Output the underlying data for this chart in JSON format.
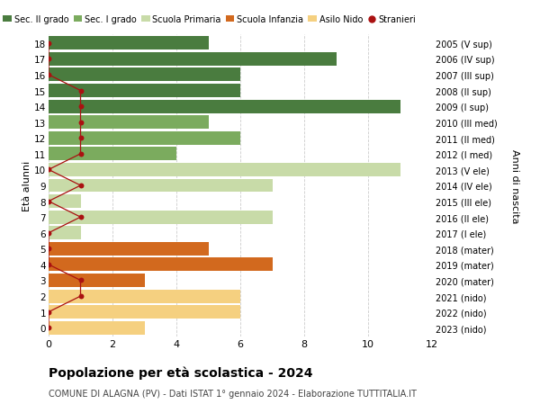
{
  "ages": [
    18,
    17,
    16,
    15,
    14,
    13,
    12,
    11,
    10,
    9,
    8,
    7,
    6,
    5,
    4,
    3,
    2,
    1,
    0
  ],
  "right_labels": [
    "2005 (V sup)",
    "2006 (IV sup)",
    "2007 (III sup)",
    "2008 (II sup)",
    "2009 (I sup)",
    "2010 (III med)",
    "2011 (II med)",
    "2012 (I med)",
    "2013 (V ele)",
    "2014 (IV ele)",
    "2015 (III ele)",
    "2016 (II ele)",
    "2017 (I ele)",
    "2018 (mater)",
    "2019 (mater)",
    "2020 (mater)",
    "2021 (nido)",
    "2022 (nido)",
    "2023 (nido)"
  ],
  "bar_values": [
    5,
    9,
    6,
    6,
    11,
    5,
    6,
    4,
    11,
    7,
    1,
    7,
    1,
    5,
    7,
    3,
    6,
    6,
    3
  ],
  "bar_colors": [
    "#4a7c3f",
    "#4a7c3f",
    "#4a7c3f",
    "#4a7c3f",
    "#4a7c3f",
    "#7bab5e",
    "#7bab5e",
    "#7bab5e",
    "#c8dba8",
    "#c8dba8",
    "#c8dba8",
    "#c8dba8",
    "#c8dba8",
    "#d2691e",
    "#d2691e",
    "#d2691e",
    "#f5d080",
    "#f5d080",
    "#f5d080"
  ],
  "stranieri_x": [
    0,
    0,
    0,
    1,
    1,
    1,
    1,
    1,
    0,
    1,
    0,
    1,
    0,
    0,
    0,
    1,
    1,
    0,
    0
  ],
  "legend_labels": [
    "Sec. II grado",
    "Sec. I grado",
    "Scuola Primaria",
    "Scuola Infanzia",
    "Asilo Nido",
    "Stranieri"
  ],
  "legend_colors": [
    "#4a7c3f",
    "#7bab5e",
    "#c8dba8",
    "#d2691e",
    "#f5d080",
    "#aa1111"
  ],
  "title": "Popolazione per età scolastica - 2024",
  "subtitle": "COMUNE DI ALAGNA (PV) - Dati ISTAT 1° gennaio 2024 - Elaborazione TUTTITALIA.IT",
  "ylabel": "Età alunni",
  "right_ylabel": "Anni di nascita",
  "bg_color": "#ffffff",
  "grid_color": "#cccccc",
  "xlim": [
    0,
    12
  ],
  "bar_height": 0.85
}
